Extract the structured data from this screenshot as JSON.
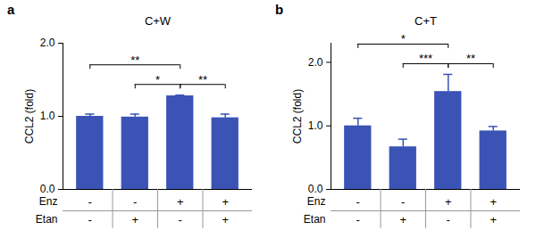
{
  "chart_data": [
    {
      "type": "bar",
      "panel": "a",
      "title": "C+W",
      "y_label": "CCL2 (fold)",
      "categories": [
        null,
        null,
        null,
        null
      ],
      "values": [
        1.0,
        0.99,
        1.28,
        0.98
      ],
      "errors": [
        0.03,
        0.04,
        0.01,
        0.05
      ],
      "color": "#3a53b5",
      "ylim": [
        0,
        2
      ],
      "yticks": [
        0,
        1,
        2
      ],
      "conditions": [
        {
          "label": "Enz",
          "values": [
            "-",
            "-",
            "+",
            "+"
          ]
        },
        {
          "label": "Etan",
          "values": [
            "-",
            "+",
            "-",
            "+"
          ]
        }
      ],
      "significance": [
        {
          "from": 0,
          "to": 2,
          "label": "**"
        },
        {
          "from": 1,
          "to": 2,
          "label": "*"
        },
        {
          "from": 2,
          "to": 3,
          "label": "**"
        }
      ]
    },
    {
      "type": "bar",
      "panel": "b",
      "title": "C+T",
      "y_label": "CCL2 (fold)",
      "categories": [
        null,
        null,
        null,
        null
      ],
      "values": [
        1.0,
        0.67,
        1.54,
        0.92
      ],
      "errors": [
        0.12,
        0.12,
        0.27,
        0.07
      ],
      "color": "#3a53b5",
      "ylim": [
        0,
        2.3
      ],
      "yticks": [
        0,
        1,
        2
      ],
      "conditions": [
        {
          "label": "Enz",
          "values": [
            "-",
            "-",
            "+",
            "+"
          ]
        },
        {
          "label": "Etan",
          "values": [
            "-",
            "+",
            "-",
            "+"
          ]
        }
      ],
      "significance": [
        {
          "from": 0,
          "to": 2,
          "label": "*"
        },
        {
          "from": 1,
          "to": 2,
          "label": "***"
        },
        {
          "from": 2,
          "to": 3,
          "label": "**"
        }
      ]
    }
  ]
}
